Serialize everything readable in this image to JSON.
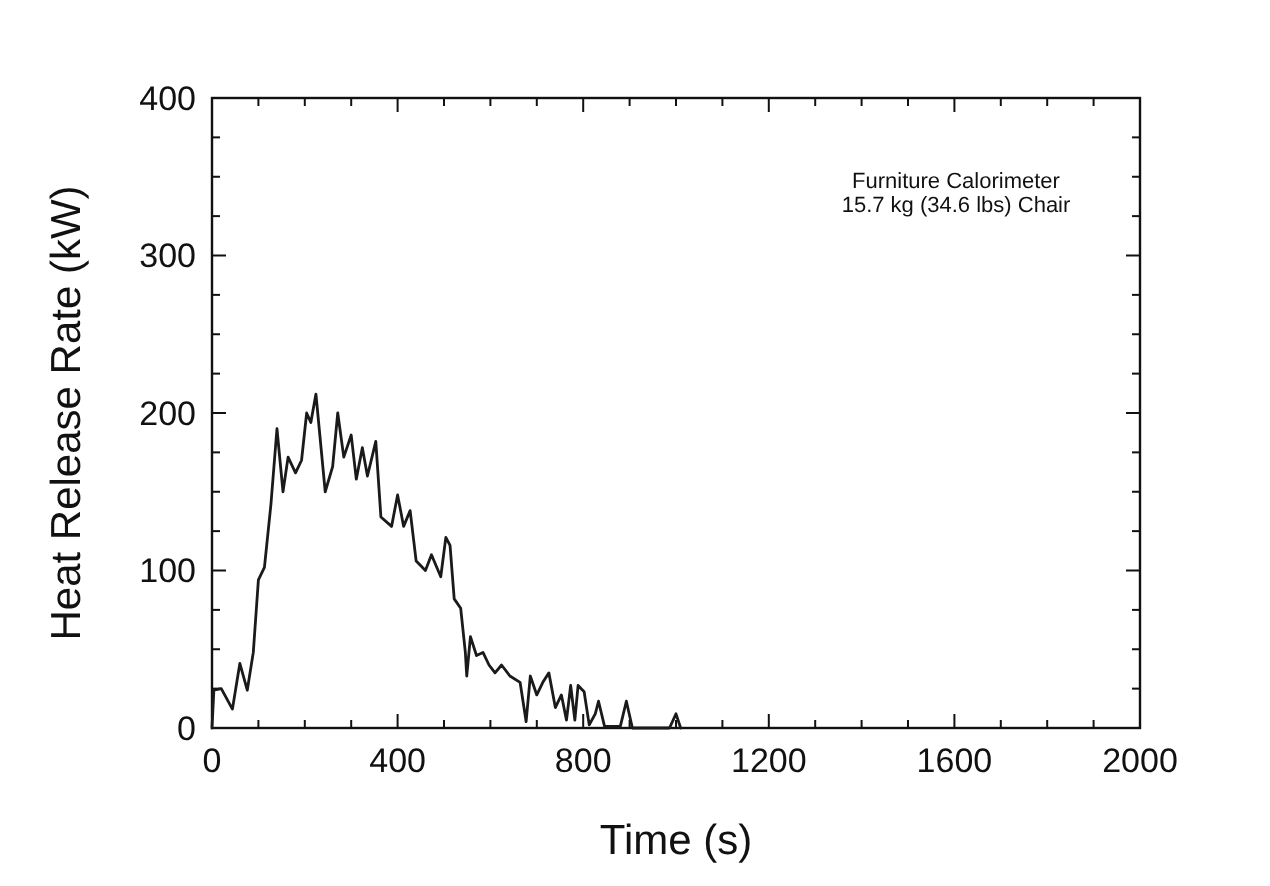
{
  "chart_data": {
    "type": "line",
    "xlabel": "Time (s)",
    "ylabel": "Heat Release Rate (kW)",
    "annotations": [
      "Furniture Calorimeter",
      "15.7 kg (34.6 lbs) Chair"
    ],
    "xlim": [
      0,
      2000
    ],
    "ylim": [
      0,
      400
    ],
    "xticks": [
      0,
      {
        "value": 100,
        "label": null
      },
      {
        "value": 200,
        "label": null
      },
      {
        "value": 300,
        "label": null
      },
      400,
      {
        "value": 500,
        "label": null
      },
      {
        "value": 600,
        "label": null
      },
      {
        "value": 700,
        "label": null
      },
      800,
      {
        "value": 900,
        "label": null
      },
      {
        "value": 1000,
        "label": null
      },
      {
        "value": 1100,
        "label": null
      },
      1200,
      {
        "value": 1300,
        "label": null
      },
      {
        "value": 1400,
        "label": null
      },
      {
        "value": 1500,
        "label": null
      },
      1600,
      {
        "value": 1700,
        "label": null
      },
      {
        "value": 1800,
        "label": null
      },
      {
        "value": 1900,
        "label": null
      },
      2000
    ],
    "yticks": [
      0,
      {
        "value": 25,
        "label": null
      },
      {
        "value": 50,
        "label": null
      },
      {
        "value": 75,
        "label": null
      },
      100,
      {
        "value": 125,
        "label": null
      },
      {
        "value": 150,
        "label": null
      },
      {
        "value": 175,
        "label": null
      },
      200,
      {
        "value": 225,
        "label": null
      },
      {
        "value": 250,
        "label": null
      },
      {
        "value": 275,
        "label": null
      },
      300,
      {
        "value": 325,
        "label": null
      },
      {
        "value": 350,
        "label": null
      },
      {
        "value": 375,
        "label": null
      },
      400
    ],
    "marker": "none",
    "line_style": "solid",
    "series": [
      {
        "color": "#1a1a1a",
        "x": [
          0,
          4,
          20,
          44,
          60,
          76,
          89,
          100,
          113,
          127,
          140,
          153,
          164,
          180,
          193,
          204,
          213,
          224,
          244,
          260,
          271,
          284,
          300,
          311,
          324,
          335,
          353,
          364,
          387,
          400,
          413,
          427,
          440,
          460,
          473,
          493,
          504,
          513,
          522,
          536,
          546,
          549,
          557,
          570,
          584,
          597,
          610,
          624,
          642,
          664,
          677,
          686,
          700,
          713,
          726,
          740,
          753,
          764,
          773,
          782,
          789,
          802,
          813,
          826,
          833,
          846,
          880,
          893,
          906,
          986,
          1000,
          1010
        ],
        "values": [
          0,
          24,
          25,
          12,
          41,
          24,
          48,
          94,
          102,
          142,
          190,
          150,
          172,
          162,
          170,
          200,
          194,
          212,
          150,
          166,
          200,
          172,
          186,
          158,
          178,
          160,
          182,
          134,
          128,
          148,
          128,
          138,
          106,
          100,
          110,
          96,
          121,
          116,
          82,
          76,
          48,
          33,
          58,
          46,
          48,
          40,
          35,
          40,
          33,
          29,
          4,
          33,
          21,
          29,
          35,
          13,
          21,
          5,
          27,
          5,
          27,
          23,
          2,
          9,
          17,
          1,
          1,
          17,
          0,
          0,
          9,
          0
        ]
      }
    ]
  }
}
